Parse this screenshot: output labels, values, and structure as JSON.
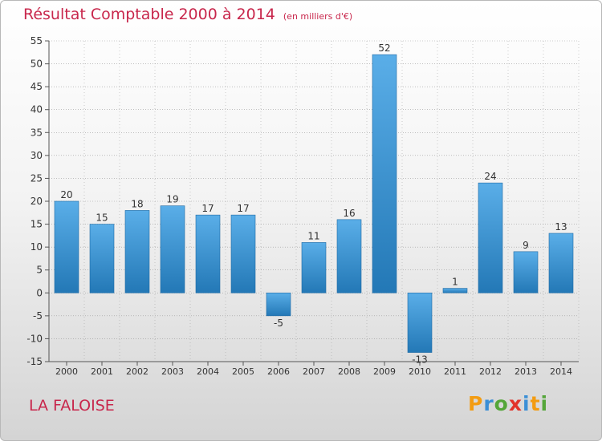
{
  "header": {
    "title": "Résultat Comptable 2000 à 2014",
    "unit": "(en milliers d'€)"
  },
  "footer": {
    "place": "LA FALOISE",
    "brand": [
      "P",
      "r",
      "o",
      "x",
      "i",
      "t",
      "i"
    ]
  },
  "colors": {
    "title": "#c8274c",
    "bar_top": "#5aaee8",
    "bar_bottom": "#2378b6",
    "axis": "#555555",
    "grid": "#9a9a9a"
  },
  "chart_data": {
    "type": "bar",
    "title": "Résultat Comptable 2000 à 2014",
    "ylabel": "",
    "xlabel": "",
    "categories": [
      "2000",
      "2001",
      "2002",
      "2003",
      "2004",
      "2005",
      "2006",
      "2007",
      "2008",
      "2009",
      "2010",
      "2011",
      "2012",
      "2013",
      "2014"
    ],
    "values": [
      20,
      15,
      18,
      19,
      17,
      17,
      -5,
      11,
      16,
      52,
      -13,
      1,
      24,
      9,
      13
    ],
    "ylim": [
      -15,
      55
    ],
    "yticks": [
      55,
      50,
      45,
      40,
      35,
      30,
      25,
      20,
      15,
      10,
      5,
      0,
      -5,
      -10,
      -15
    ],
    "grid": true
  }
}
